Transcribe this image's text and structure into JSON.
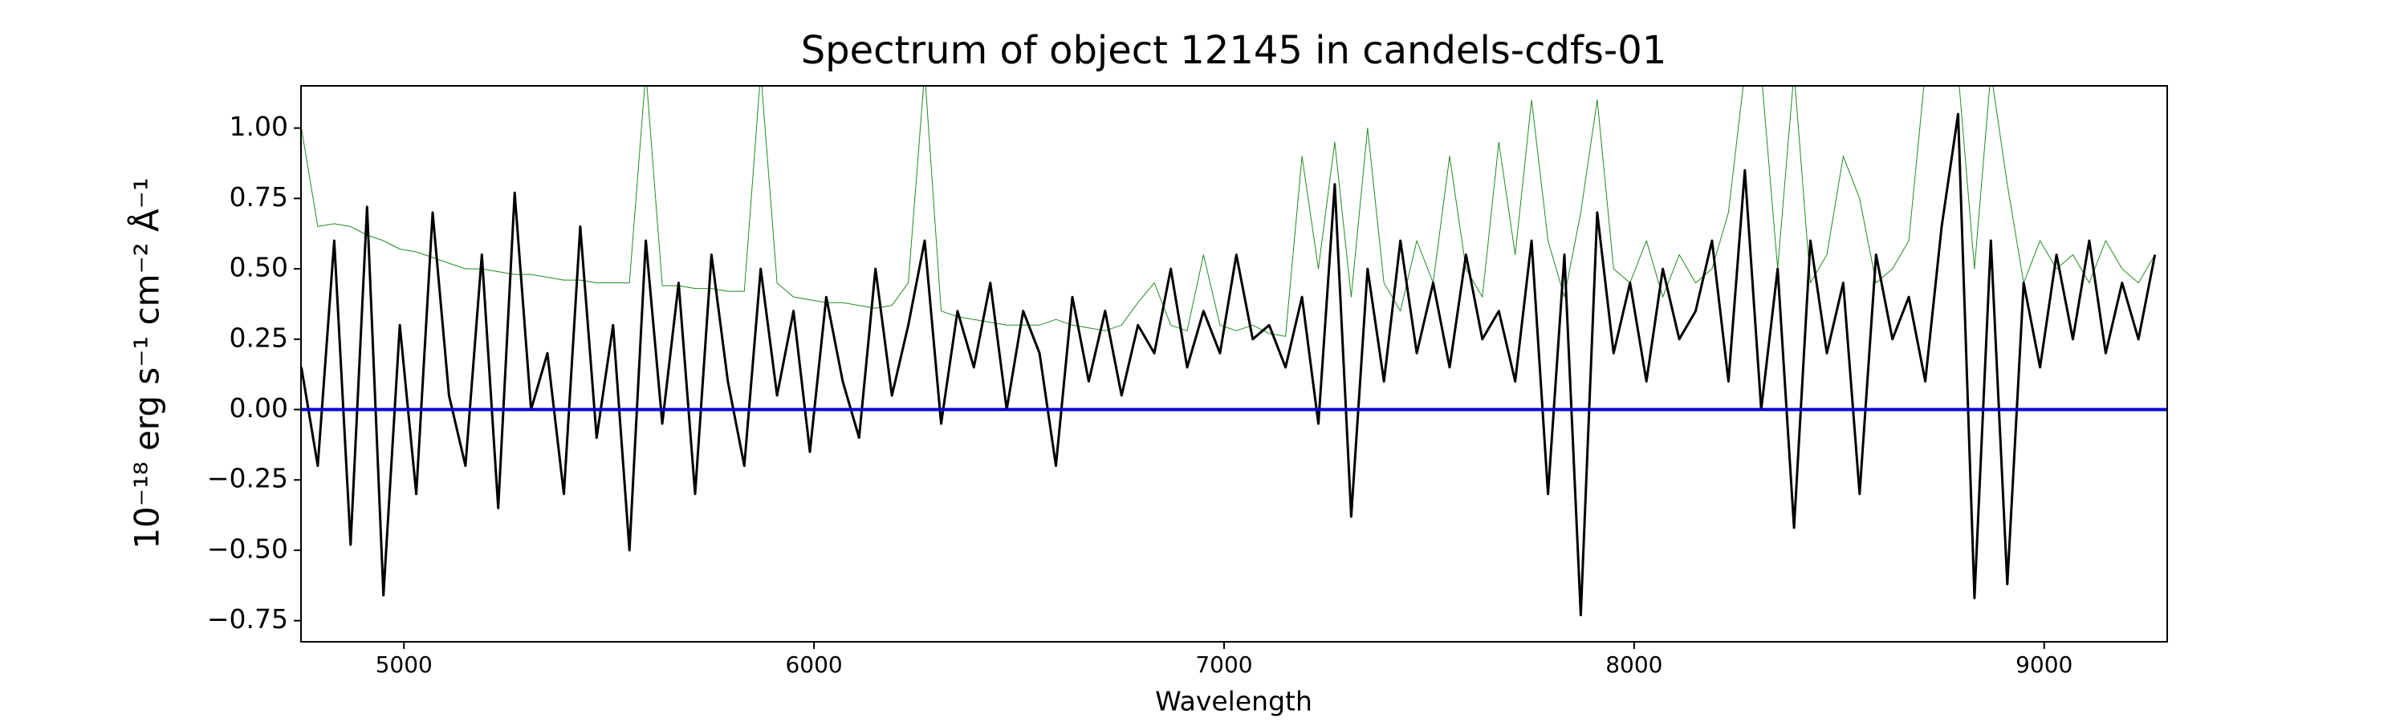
{
  "chart_data": {
    "type": "line",
    "title": "Spectrum of object 12145 in candels-cdfs-01",
    "xlabel": "Wavelength",
    "ylabel": "10⁻¹⁸ erg s⁻¹ cm⁻² Å⁻¹",
    "xlim": [
      4749,
      9300
    ],
    "ylim": [
      -0.825,
      1.15
    ],
    "xticks": [
      5000,
      6000,
      7000,
      8000,
      9000
    ],
    "yticks": [
      {
        "value": -0.75,
        "label": "−0.75"
      },
      {
        "value": -0.5,
        "label": "−0.50"
      },
      {
        "value": -0.25,
        "label": "−0.25"
      },
      {
        "value": 0,
        "label": "0.00"
      },
      0.25,
      {
        "value": 0.5,
        "label": "0.50"
      },
      0.75,
      {
        "value": 1,
        "label": "1.00"
      }
    ],
    "hline": {
      "value": 0,
      "color": "#0000cc"
    },
    "x": [
      4750,
      4790,
      4830,
      4870,
      4910,
      4950,
      4990,
      5030,
      5070,
      5110,
      5150,
      5190,
      5230,
      5270,
      5310,
      5350,
      5390,
      5430,
      5470,
      5510,
      5550,
      5590,
      5630,
      5670,
      5710,
      5750,
      5790,
      5830,
      5870,
      5910,
      5950,
      5990,
      6030,
      6070,
      6110,
      6150,
      6190,
      6230,
      6270,
      6310,
      6350,
      6390,
      6430,
      6470,
      6510,
      6550,
      6590,
      6630,
      6670,
      6710,
      6750,
      6790,
      6830,
      6870,
      6910,
      6950,
      6990,
      7030,
      7070,
      7110,
      7150,
      7190,
      7230,
      7270,
      7310,
      7350,
      7390,
      7430,
      7470,
      7510,
      7550,
      7590,
      7630,
      7670,
      7710,
      7750,
      7790,
      7830,
      7870,
      7910,
      7950,
      7990,
      8030,
      8070,
      8110,
      8150,
      8190,
      8230,
      8270,
      8310,
      8350,
      8390,
      8430,
      8470,
      8510,
      8550,
      8590,
      8630,
      8670,
      8710,
      8750,
      8790,
      8830,
      8870,
      8910,
      8950,
      8990,
      9030,
      9070,
      9110,
      9150,
      9190,
      9230,
      9270
    ],
    "series": [
      {
        "color": "#228b22",
        "width": 1,
        "values": [
          1.0,
          0.65,
          0.66,
          0.65,
          0.62,
          0.6,
          0.57,
          0.56,
          0.54,
          0.52,
          0.5,
          0.5,
          0.49,
          0.48,
          0.48,
          0.47,
          0.46,
          0.46,
          0.45,
          0.45,
          0.45,
          1.2,
          0.44,
          0.44,
          0.43,
          0.43,
          0.42,
          0.42,
          1.2,
          0.45,
          0.4,
          0.39,
          0.38,
          0.38,
          0.37,
          0.36,
          0.37,
          0.45,
          1.2,
          0.35,
          0.33,
          0.32,
          0.31,
          0.3,
          0.3,
          0.3,
          0.32,
          0.3,
          0.29,
          0.28,
          0.3,
          0.38,
          0.45,
          0.3,
          0.28,
          0.55,
          0.3,
          0.28,
          0.3,
          0.27,
          0.26,
          0.9,
          0.5,
          0.95,
          0.4,
          1.0,
          0.45,
          0.35,
          0.6,
          0.45,
          0.9,
          0.5,
          0.4,
          0.95,
          0.55,
          1.1,
          0.6,
          0.4,
          0.7,
          1.1,
          0.5,
          0.45,
          0.6,
          0.4,
          0.55,
          0.45,
          0.5,
          0.7,
          1.2,
          1.2,
          0.5,
          1.2,
          0.45,
          0.55,
          0.9,
          0.75,
          0.45,
          0.5,
          0.6,
          1.2,
          1.2,
          1.2,
          0.5,
          1.2,
          0.8,
          0.45,
          0.6,
          0.5,
          0.55,
          0.45,
          0.6,
          0.5,
          0.45,
          0.55
        ]
      },
      {
        "color": "#000000",
        "width": 3,
        "values": [
          0.15,
          -0.2,
          0.6,
          -0.48,
          0.72,
          -0.66,
          0.3,
          -0.3,
          0.7,
          0.05,
          -0.2,
          0.55,
          -0.35,
          0.77,
          0.0,
          0.2,
          -0.3,
          0.65,
          -0.1,
          0.3,
          -0.5,
          0.6,
          -0.05,
          0.45,
          -0.3,
          0.55,
          0.1,
          -0.2,
          0.5,
          0.05,
          0.35,
          -0.15,
          0.4,
          0.1,
          -0.1,
          0.5,
          0.05,
          0.3,
          0.6,
          -0.05,
          0.35,
          0.15,
          0.45,
          0.0,
          0.35,
          0.2,
          -0.2,
          0.4,
          0.1,
          0.35,
          0.05,
          0.3,
          0.2,
          0.5,
          0.15,
          0.35,
          0.2,
          0.55,
          0.25,
          0.3,
          0.15,
          0.4,
          -0.05,
          0.8,
          -0.38,
          0.5,
          0.1,
          0.6,
          0.2,
          0.45,
          0.15,
          0.55,
          0.25,
          0.35,
          0.1,
          0.6,
          -0.3,
          0.55,
          -0.73,
          0.7,
          0.2,
          0.45,
          0.1,
          0.5,
          0.25,
          0.35,
          0.6,
          0.1,
          0.85,
          0.0,
          0.5,
          -0.42,
          0.6,
          0.2,
          0.45,
          -0.3,
          0.55,
          0.25,
          0.4,
          0.1,
          0.65,
          1.05,
          -0.67,
          0.6,
          -0.62,
          0.45,
          0.15,
          0.55,
          0.25,
          0.6,
          0.2,
          0.45,
          0.25,
          0.55
        ]
      }
    ]
  }
}
